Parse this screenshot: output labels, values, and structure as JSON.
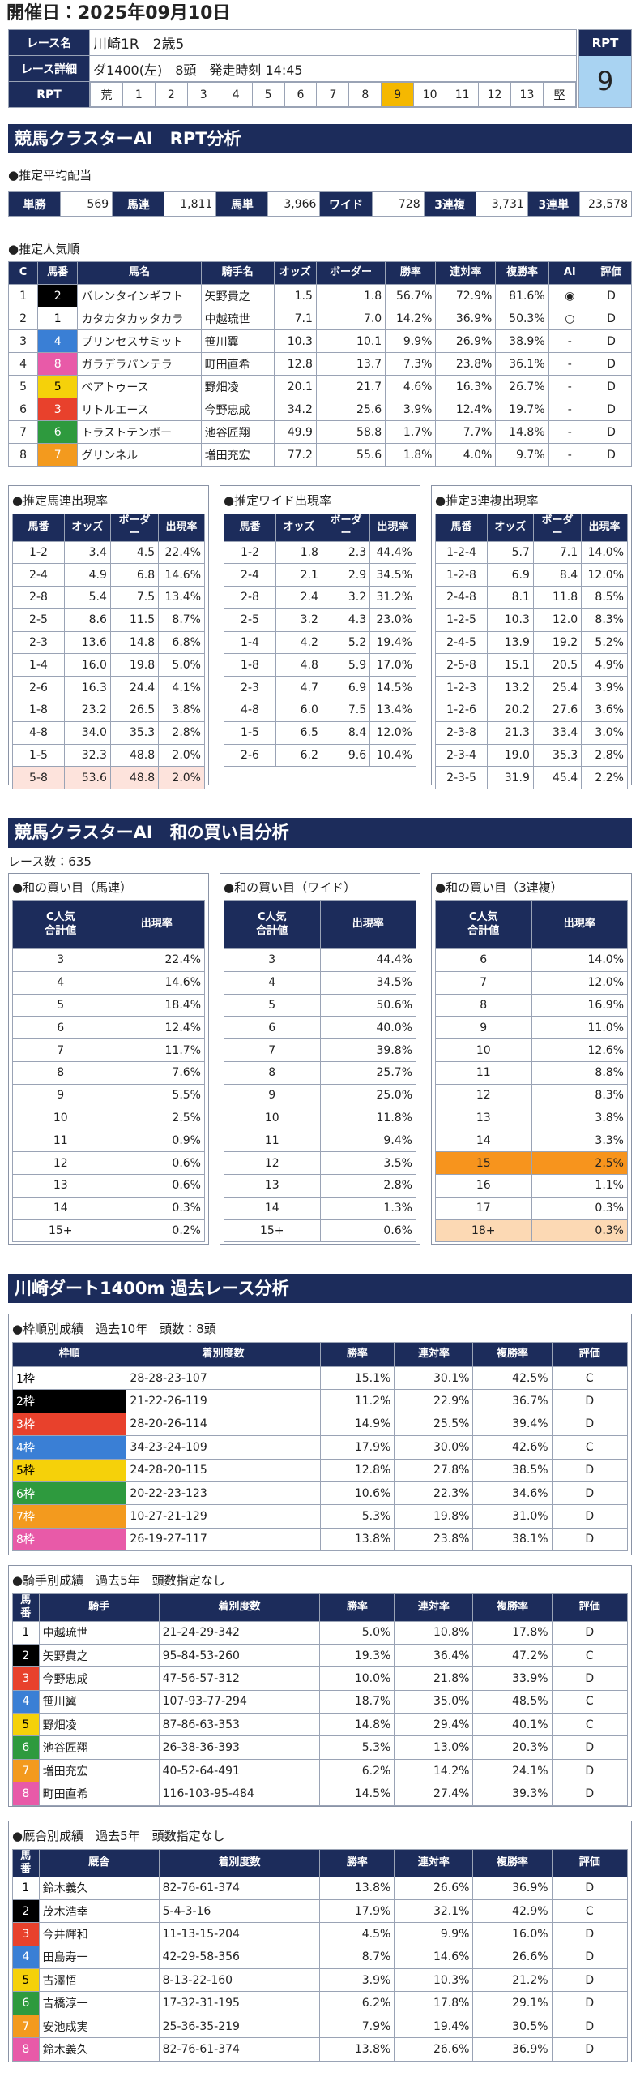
{
  "header": {
    "date": "開催日：2025年09月10日"
  },
  "race": {
    "name_label": "レース名",
    "name": "川崎1R　2歳5",
    "detail_label": "レース詳細",
    "detail": "ダ1400(左)　8頭　発走時刻 14:45",
    "rpt_label": "RPT",
    "rpt_scale": [
      "荒",
      "1",
      "2",
      "3",
      "4",
      "5",
      "6",
      "7",
      "8",
      "9",
      "10",
      "11",
      "12",
      "13",
      "堅"
    ],
    "rpt_box_label": "RPT",
    "rpt_value": "9"
  },
  "rpt_section": {
    "title": "競馬クラスターAI　RPT分析",
    "payout": {
      "label": "●推定平均配当",
      "items": [
        [
          "単勝",
          "569"
        ],
        [
          "馬連",
          "1,811"
        ],
        [
          "馬単",
          "3,966"
        ],
        [
          "ワイド",
          "728"
        ],
        [
          "3連複",
          "3,731"
        ],
        [
          "3連単",
          "23,578"
        ]
      ]
    },
    "popularity": {
      "label": "●推定人気順",
      "headers": [
        "C",
        "馬番",
        "馬名",
        "騎手名",
        "オッズ",
        "ボーダー",
        "勝率",
        "連対率",
        "複勝率",
        "AI",
        "評価"
      ],
      "rows": [
        [
          "1",
          "2",
          "バレンタインギフト",
          "矢野貴之",
          "1.5",
          "1.8",
          "56.7%",
          "72.9%",
          "81.6%",
          "◉",
          "D"
        ],
        [
          "2",
          "1",
          "カタカタカッタカラ",
          "中越琉世",
          "7.1",
          "7.0",
          "14.2%",
          "36.9%",
          "50.3%",
          "○",
          "D"
        ],
        [
          "3",
          "4",
          "プリンセスサミット",
          "笹川翼",
          "10.3",
          "10.1",
          "9.9%",
          "26.9%",
          "38.9%",
          "-",
          "D"
        ],
        [
          "4",
          "8",
          "ガラデラパンテラ",
          "町田直希",
          "12.8",
          "13.7",
          "7.3%",
          "23.8%",
          "36.1%",
          "-",
          "D"
        ],
        [
          "5",
          "5",
          "ベアトゥース",
          "野畑凌",
          "20.1",
          "21.7",
          "4.6%",
          "16.3%",
          "26.7%",
          "-",
          "D"
        ],
        [
          "6",
          "3",
          "リトルエース",
          "今野忠成",
          "34.2",
          "25.6",
          "3.9%",
          "12.4%",
          "19.7%",
          "-",
          "D"
        ],
        [
          "7",
          "6",
          "トラストテンボー",
          "池谷匠翔",
          "49.9",
          "58.8",
          "1.7%",
          "7.7%",
          "14.8%",
          "-",
          "D"
        ],
        [
          "8",
          "7",
          "グリンネル",
          "増田充宏",
          "77.2",
          "55.6",
          "1.8%",
          "4.0%",
          "9.7%",
          "-",
          "D"
        ]
      ]
    },
    "combos": [
      {
        "label": "●推定馬連出現率",
        "headers": [
          "馬番",
          "オッズ",
          "ボーダー",
          "出現率"
        ],
        "rows": [
          [
            "1-2",
            "3.4",
            "4.5",
            "22.4%"
          ],
          [
            "2-4",
            "4.9",
            "6.8",
            "14.6%"
          ],
          [
            "2-8",
            "5.4",
            "7.5",
            "13.4%"
          ],
          [
            "2-5",
            "8.6",
            "11.5",
            "8.7%"
          ],
          [
            "2-3",
            "13.6",
            "14.8",
            "6.8%"
          ],
          [
            "1-4",
            "16.0",
            "19.8",
            "5.0%"
          ],
          [
            "2-6",
            "16.3",
            "24.4",
            "4.1%"
          ],
          [
            "1-8",
            "23.2",
            "26.5",
            "3.8%"
          ],
          [
            "4-8",
            "34.0",
            "35.3",
            "2.8%"
          ],
          [
            "1-5",
            "32.3",
            "48.8",
            "2.0%"
          ],
          [
            "5-8",
            "53.6",
            "48.8",
            "2.0%"
          ]
        ]
      },
      {
        "label": "●推定ワイド出現率",
        "headers": [
          "馬番",
          "オッズ",
          "ボーダー",
          "出現率"
        ],
        "rows": [
          [
            "1-2",
            "1.8",
            "2.3",
            "44.4%"
          ],
          [
            "2-4",
            "2.1",
            "2.9",
            "34.5%"
          ],
          [
            "2-8",
            "2.4",
            "3.2",
            "31.2%"
          ],
          [
            "2-5",
            "3.2",
            "4.3",
            "23.0%"
          ],
          [
            "1-4",
            "4.2",
            "5.2",
            "19.4%"
          ],
          [
            "1-8",
            "4.8",
            "5.9",
            "17.0%"
          ],
          [
            "2-3",
            "4.7",
            "6.9",
            "14.5%"
          ],
          [
            "4-8",
            "6.0",
            "7.5",
            "13.4%"
          ],
          [
            "1-5",
            "6.5",
            "8.4",
            "12.0%"
          ],
          [
            "2-6",
            "6.2",
            "9.6",
            "10.4%"
          ]
        ]
      },
      {
        "label": "●推定3連複出現率",
        "headers": [
          "馬番",
          "オッズ",
          "ボーダー",
          "出現率"
        ],
        "rows": [
          [
            "1-2-4",
            "5.7",
            "7.1",
            "14.0%"
          ],
          [
            "1-2-8",
            "6.9",
            "8.4",
            "12.0%"
          ],
          [
            "2-4-8",
            "8.1",
            "11.8",
            "8.5%"
          ],
          [
            "1-2-5",
            "10.3",
            "12.0",
            "8.3%"
          ],
          [
            "2-4-5",
            "13.9",
            "19.2",
            "5.2%"
          ],
          [
            "2-5-8",
            "15.1",
            "20.5",
            "4.9%"
          ],
          [
            "1-2-3",
            "13.2",
            "25.4",
            "3.9%"
          ],
          [
            "1-2-6",
            "20.2",
            "27.6",
            "3.6%"
          ],
          [
            "2-3-8",
            "21.3",
            "33.4",
            "3.0%"
          ],
          [
            "2-3-4",
            "19.0",
            "35.3",
            "2.8%"
          ],
          [
            "2-3-5",
            "31.9",
            "45.4",
            "2.2%"
          ]
        ]
      }
    ]
  },
  "sum_section": {
    "title": "競馬クラスターAI　和の買い目分析",
    "races": "レース数：635",
    "tables": [
      {
        "label": "●和の買い目（馬連）",
        "headers": [
          "C人気\n合計値",
          "出現率"
        ],
        "rows": [
          [
            "3",
            "22.4%"
          ],
          [
            "4",
            "14.6%"
          ],
          [
            "5",
            "18.4%"
          ],
          [
            "6",
            "12.4%"
          ],
          [
            "7",
            "11.7%"
          ],
          [
            "8",
            "7.6%"
          ],
          [
            "9",
            "5.5%"
          ],
          [
            "10",
            "2.5%"
          ],
          [
            "11",
            "0.9%"
          ],
          [
            "12",
            "0.6%"
          ],
          [
            "13",
            "0.6%"
          ],
          [
            "14",
            "0.3%"
          ],
          [
            "15+",
            "0.2%"
          ]
        ]
      },
      {
        "label": "●和の買い目（ワイド）",
        "headers": [
          "C人気\n合計値",
          "出現率"
        ],
        "rows": [
          [
            "3",
            "44.4%"
          ],
          [
            "4",
            "34.5%"
          ],
          [
            "5",
            "50.6%"
          ],
          [
            "6",
            "40.0%"
          ],
          [
            "7",
            "39.8%"
          ],
          [
            "8",
            "25.7%"
          ],
          [
            "9",
            "25.0%"
          ],
          [
            "10",
            "11.8%"
          ],
          [
            "11",
            "9.4%"
          ],
          [
            "12",
            "3.5%"
          ],
          [
            "13",
            "2.8%"
          ],
          [
            "14",
            "1.3%"
          ],
          [
            "15+",
            "0.6%"
          ]
        ]
      },
      {
        "label": "●和の買い目（3連複）",
        "headers": [
          "C人気\n合計値",
          "出現率"
        ],
        "rows": [
          [
            "6",
            "14.0%"
          ],
          [
            "7",
            "12.0%"
          ],
          [
            "8",
            "16.9%"
          ],
          [
            "9",
            "11.0%"
          ],
          [
            "10",
            "12.6%"
          ],
          [
            "11",
            "8.8%"
          ],
          [
            "12",
            "8.3%"
          ],
          [
            "13",
            "3.8%"
          ],
          [
            "14",
            "3.3%"
          ],
          [
            "15",
            "2.5%"
          ],
          [
            "16",
            "1.1%"
          ],
          [
            "17",
            "0.3%"
          ],
          [
            "18+",
            "0.3%"
          ]
        ]
      }
    ]
  },
  "past_section": {
    "title": "川崎ダート1400m 過去レース分析",
    "tables": [
      {
        "label": "●枠順別成績　過去10年　頭数：8頭",
        "headers": [
          "枠順",
          "着別度数",
          "勝率",
          "連対率",
          "複勝率",
          "評価"
        ],
        "rows": [
          [
            "1枠",
            "28-28-23-107",
            "15.1%",
            "30.1%",
            "42.5%",
            "C"
          ],
          [
            "2枠",
            "21-22-26-119",
            "11.2%",
            "22.9%",
            "36.7%",
            "D"
          ],
          [
            "3枠",
            "28-20-26-114",
            "14.9%",
            "25.5%",
            "39.4%",
            "D"
          ],
          [
            "4枠",
            "34-23-24-109",
            "17.9%",
            "30.0%",
            "42.6%",
            "C"
          ],
          [
            "5枠",
            "24-28-20-115",
            "12.8%",
            "27.8%",
            "38.5%",
            "D"
          ],
          [
            "6枠",
            "20-22-23-123",
            "10.6%",
            "22.3%",
            "34.6%",
            "D"
          ],
          [
            "7枠",
            "10-27-21-129",
            "5.3%",
            "19.8%",
            "31.0%",
            "D"
          ],
          [
            "8枠",
            "26-19-27-117",
            "13.8%",
            "23.8%",
            "38.1%",
            "D"
          ]
        ]
      },
      {
        "label": "●騎手別成績　過去5年　頭数指定なし",
        "headers": [
          "馬番",
          "騎手",
          "着別度数",
          "勝率",
          "連対率",
          "複勝率",
          "評価"
        ],
        "rows": [
          [
            "1",
            "中越琉世",
            "21-24-29-342",
            "5.0%",
            "10.8%",
            "17.8%",
            "D"
          ],
          [
            "2",
            "矢野貴之",
            "95-84-53-260",
            "19.3%",
            "36.4%",
            "47.2%",
            "C"
          ],
          [
            "3",
            "今野忠成",
            "47-56-57-312",
            "10.0%",
            "21.8%",
            "33.9%",
            "D"
          ],
          [
            "4",
            "笹川翼",
            "107-93-77-294",
            "18.7%",
            "35.0%",
            "48.5%",
            "C"
          ],
          [
            "5",
            "野畑凌",
            "87-86-63-353",
            "14.8%",
            "29.4%",
            "40.1%",
            "C"
          ],
          [
            "6",
            "池谷匠翔",
            "26-38-36-393",
            "5.3%",
            "13.0%",
            "20.3%",
            "D"
          ],
          [
            "7",
            "増田充宏",
            "40-52-64-491",
            "6.2%",
            "14.2%",
            "24.1%",
            "D"
          ],
          [
            "8",
            "町田直希",
            "116-103-95-484",
            "14.5%",
            "27.4%",
            "39.3%",
            "D"
          ]
        ]
      },
      {
        "label": "●厩舎別成績　過去5年　頭数指定なし",
        "headers": [
          "馬番",
          "厩舎",
          "着別度数",
          "勝率",
          "連対率",
          "複勝率",
          "評価"
        ],
        "rows": [
          [
            "1",
            "鈴木義久",
            "82-76-61-374",
            "13.8%",
            "26.6%",
            "36.9%",
            "D"
          ],
          [
            "2",
            "茂木浩幸",
            "5-4-3-16",
            "17.9%",
            "32.1%",
            "42.9%",
            "C"
          ],
          [
            "3",
            "今井輝和",
            "11-13-15-204",
            "4.5%",
            "9.9%",
            "16.0%",
            "D"
          ],
          [
            "4",
            "田島寿一",
            "42-29-58-356",
            "8.7%",
            "14.6%",
            "26.6%",
            "D"
          ],
          [
            "5",
            "古澤悟",
            "8-13-22-160",
            "3.9%",
            "10.3%",
            "21.2%",
            "D"
          ],
          [
            "6",
            "吉橋淳一",
            "17-32-31-195",
            "6.2%",
            "17.8%",
            "29.1%",
            "D"
          ],
          [
            "7",
            "安池成実",
            "25-36-35-219",
            "7.9%",
            "19.4%",
            "30.5%",
            "D"
          ],
          [
            "8",
            "鈴木義久",
            "82-76-61-374",
            "13.8%",
            "26.6%",
            "36.9%",
            "D"
          ]
        ]
      }
    ]
  }
}
